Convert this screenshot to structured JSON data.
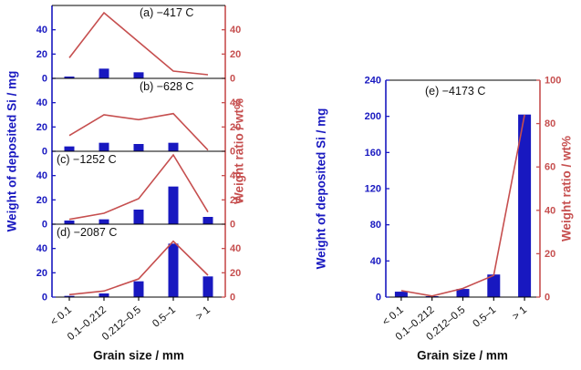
{
  "figure": {
    "xlabel": "Grain size / mm",
    "bar_axis_label": "Weight of deposited Si / mg",
    "line_axis_label": "Weight ratio / wt%",
    "colors": {
      "bar_blue": "#1818c0",
      "line_red": "#c64f4f",
      "axis_black": "#000000",
      "text_black": "#111111"
    }
  },
  "chart_data": {
    "type": "bar+line",
    "categories": [
      "< 0.1",
      "0.1–0.212",
      "0.212–0.5",
      "0.5–1",
      "> 1"
    ],
    "xlabel": "Grain size / mm",
    "bar_series_label": "Weight of deposited Si / mg",
    "line_series_label": "Weight ratio / wt%",
    "legend": "none",
    "grid": false,
    "panels": [
      {
        "id": "a",
        "title": "(a) −417 C",
        "bar_values_mg": [
          1.5,
          8,
          5,
          0,
          0
        ],
        "line_values_wt": [
          17,
          54,
          30,
          6,
          3
        ],
        "ylim": [
          0,
          60
        ],
        "yticks": [
          0,
          20,
          40
        ],
        "y2lim": [
          0,
          60
        ],
        "y2ticks": [
          0,
          20,
          40
        ]
      },
      {
        "id": "b",
        "title": "(b) −628 C",
        "bar_values_mg": [
          4,
          7,
          6,
          7,
          0
        ],
        "line_values_wt": [
          13,
          30,
          26,
          31,
          1
        ],
        "ylim": [
          0,
          60
        ],
        "yticks": [
          0,
          20,
          40
        ],
        "y2lim": [
          0,
          60
        ],
        "y2ticks": [
          0,
          20,
          40
        ]
      },
      {
        "id": "c",
        "title": "(c) −1252 C",
        "bar_values_mg": [
          3,
          4,
          12,
          31,
          6
        ],
        "line_values_wt": [
          4,
          9,
          21,
          57,
          10
        ],
        "ylim": [
          0,
          60
        ],
        "yticks": [
          0,
          20,
          40
        ],
        "y2lim": [
          0,
          60
        ],
        "y2ticks": [
          0,
          20,
          40
        ]
      },
      {
        "id": "d",
        "title": "(d) −2087 C",
        "bar_values_mg": [
          1,
          3,
          13,
          44,
          17
        ],
        "line_values_wt": [
          2,
          5,
          15,
          46,
          18
        ],
        "ylim": [
          0,
          60
        ],
        "yticks": [
          0,
          20,
          40
        ],
        "y2lim": [
          0,
          60
        ],
        "y2ticks": [
          0,
          20,
          40
        ]
      },
      {
        "id": "e",
        "title": "(e) −4173 C",
        "bar_values_mg": [
          6,
          1,
          9,
          25,
          202
        ],
        "line_values_wt": [
          3,
          0.5,
          4,
          10,
          84
        ],
        "ylim": [
          0,
          240
        ],
        "yticks": [
          0,
          40,
          80,
          120,
          160,
          200,
          240
        ],
        "y2lim": [
          0,
          100
        ],
        "y2ticks": [
          0,
          20,
          40,
          60,
          80,
          100
        ]
      }
    ]
  }
}
